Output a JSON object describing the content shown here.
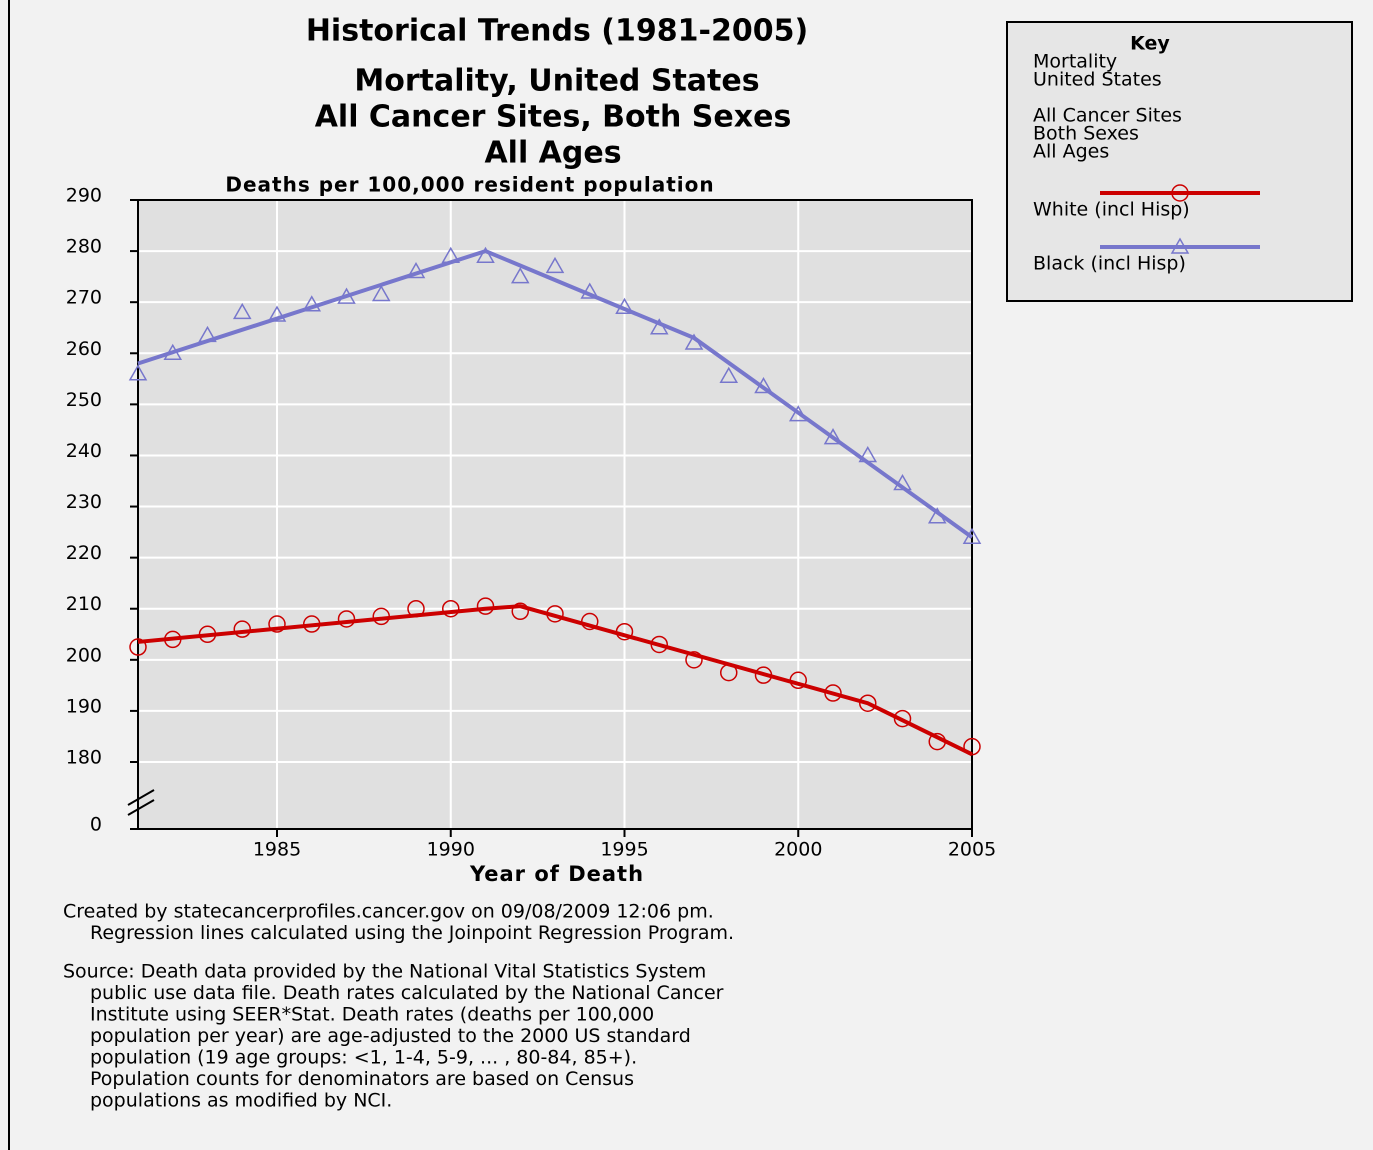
{
  "chart_data": {
    "type": "line",
    "title": "Historical Trends (1981-2005)",
    "subtitle": [
      "Mortality, United States",
      "All Cancer Sites, Both Sexes",
      "All Ages"
    ],
    "y_label": "Deaths per 100,000 resident population",
    "x_label": "Year of Death",
    "x": [
      1981,
      1982,
      1983,
      1984,
      1985,
      1986,
      1987,
      1988,
      1989,
      1990,
      1991,
      1992,
      1993,
      1994,
      1995,
      1996,
      1997,
      1998,
      1999,
      2000,
      2001,
      2002,
      2003,
      2004,
      2005
    ],
    "xlim": [
      1981,
      2005
    ],
    "xticks": [
      1985,
      1990,
      1995,
      2000,
      2005
    ],
    "ylim": [
      0,
      290
    ],
    "axis_break": [
      0,
      180
    ],
    "yticks": [
      0,
      180,
      190,
      200,
      210,
      220,
      230,
      240,
      250,
      260,
      270,
      280,
      290
    ],
    "grid": true,
    "series": [
      {
        "name": "White (incl Hisp)",
        "color": "#cc0000",
        "marker": "circle",
        "values": [
          202.5,
          204,
          205,
          206,
          207,
          207,
          208,
          208.5,
          210,
          210,
          210.5,
          209.5,
          209,
          207.5,
          205.5,
          203,
          200,
          197.5,
          197,
          196,
          193.5,
          191.5,
          188.5,
          184,
          183
        ],
        "trend": {
          "x": [
            1981,
            1991,
            1992,
            2002,
            2005
          ],
          "values": [
            203.5,
            210,
            210.5,
            191.5,
            181.5
          ]
        }
      },
      {
        "name": "Black (incl Hisp)",
        "color": "#7777cc",
        "marker": "triangle",
        "values": [
          256,
          260,
          263.5,
          268,
          267.5,
          269.5,
          271,
          271.5,
          276,
          279,
          279,
          275,
          277,
          272,
          269,
          265,
          262,
          255.5,
          253.5,
          248,
          243.5,
          240,
          234.5,
          228,
          224
        ],
        "trend": {
          "x": [
            1981,
            1991,
            1997,
            2005
          ],
          "values": [
            258,
            280,
            263,
            224
          ]
        }
      }
    ],
    "key": {
      "title": "Key",
      "lines": [
        [
          "Mortality",
          "United States"
        ],
        [
          "All Cancer Sites",
          "Both Sexes",
          "All Ages"
        ]
      ]
    },
    "notes": [
      [
        "Created by statecancerprofiles.cancer.gov on 09/08/2009 12:06 pm.",
        "Regression lines calculated using the  Joinpoint Regression Program."
      ],
      [
        "Source: Death data provided by the  National Vital Statistics System",
        "public use data file. Death rates calculated by the National Cancer",
        "Institute using   SEER*Stat.  Death rates (deaths per 100,000",
        "population per year) are age-adjusted to the 2000 US standard",
        "population (19 age groups: <1, 1-4, 5-9, ... , 80-84, 85+).",
        "Population counts for denominators are based on Census",
        "populations as modified by NCI."
      ]
    ]
  }
}
